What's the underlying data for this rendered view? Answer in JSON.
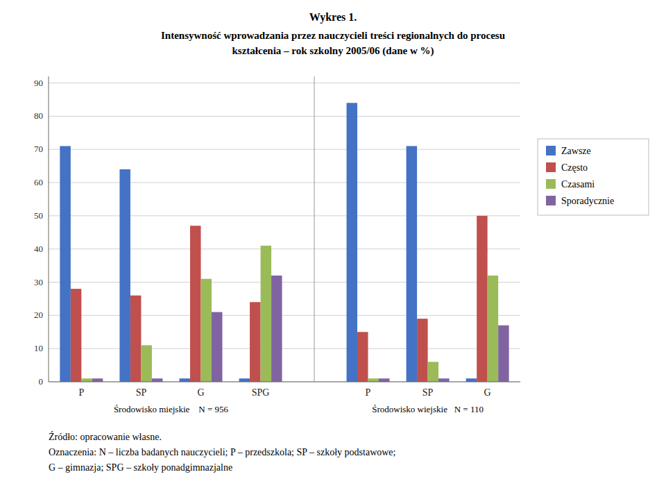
{
  "chart_data": {
    "type": "bar",
    "title": "Wykres 1.",
    "subtitle": [
      "Intensywność wprowadzania przez nauczycieli treści regionalnych do procesu",
      "kształcenia – rok szkolny 2005/06 (dane w %)"
    ],
    "categories": [
      "P",
      "SP",
      "G",
      "SPG",
      "P",
      "SP",
      "G"
    ],
    "series": [
      {
        "name": "Zawsze",
        "color": "#4472C4",
        "values": [
          71,
          64,
          1,
          1,
          84,
          71,
          1
        ]
      },
      {
        "name": "Często",
        "color": "#C0504D",
        "values": [
          28,
          26,
          47,
          24,
          15,
          19,
          50
        ]
      },
      {
        "name": "Czasami",
        "color": "#9BBB59",
        "values": [
          1,
          11,
          31,
          41,
          1,
          6,
          32
        ]
      },
      {
        "name": "Sporadycznie",
        "color": "#8064A2",
        "values": [
          1,
          1,
          21,
          32,
          1,
          1,
          17
        ]
      }
    ],
    "ylim": [
      0,
      92
    ],
    "yticks": [
      0,
      10,
      20,
      30,
      40,
      50,
      60,
      70,
      80,
      90
    ],
    "grid": true,
    "legend": "right",
    "annotations": [
      "Środowisko miejskie    N = 956",
      "Środowisko wiejskie   N = 110",
      "Źródło: opracowanie własne.",
      "Oznaczenia: N – liczba badanych nauczycieli; P – przedszkola; SP – szkoły podstawowe;",
      "G – gimnazja; SPG – szkoły ponadgimnazjalne"
    ]
  }
}
